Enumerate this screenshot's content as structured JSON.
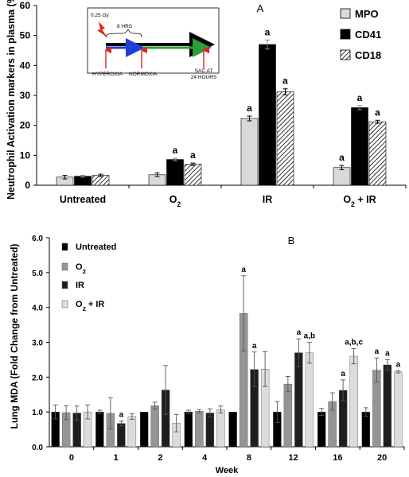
{
  "chart_data": [
    {
      "type": "bar",
      "panel_label": "A",
      "ylabel": "Neutrophil Activation markers in plasma (%)",
      "xlabel": "",
      "ylim": [
        0,
        60
      ],
      "yticks": [
        "0",
        "10",
        "20",
        "30",
        "40",
        "50",
        "60"
      ],
      "grid": false,
      "legend_position": "top-right",
      "categories": [
        "Untreated",
        "O2",
        "IR",
        "O2 + IR"
      ],
      "category_labels": [
        {
          "main": "Untreated",
          "sub": "",
          "rest": ""
        },
        {
          "main": "O",
          "sub": "2",
          "rest": ""
        },
        {
          "main": "IR",
          "sub": "",
          "rest": ""
        },
        {
          "main": "O",
          "sub": "2",
          "rest": " + IR"
        }
      ],
      "series": [
        {
          "name": "MPO",
          "color": "#d9d9d9",
          "pattern": "solid-light",
          "values": [
            2.7,
            3.5,
            22.3,
            5.9
          ],
          "errors": [
            0.6,
            0.6,
            0.8,
            0.7
          ],
          "annotations": [
            "",
            "",
            "a",
            "a"
          ]
        },
        {
          "name": "CD41",
          "color": "#000000",
          "pattern": "solid-black",
          "values": [
            3.0,
            8.6,
            47.0,
            25.9
          ],
          "errors": [
            0.3,
            0.4,
            1.5,
            0.7
          ],
          "annotations": [
            "",
            "a",
            "a",
            "a"
          ]
        },
        {
          "name": "CD18",
          "color": "#ffffff",
          "pattern": "diagonal-hatch",
          "values": [
            3.3,
            7.0,
            31.2,
            21.2
          ],
          "errors": [
            0.4,
            0.4,
            1.0,
            0.5
          ],
          "annotations": [
            "",
            "a",
            "a",
            "a"
          ]
        }
      ],
      "inset": {
        "dose": "0.25 Gy",
        "duration": "8 HRS",
        "label_hyperoxia": "HYPEROXIA",
        "label_normoxia": "NORMOXIA",
        "label_sac_line1": "SAC AT",
        "label_sac_line2": "24 HOURS",
        "colors": {
          "hyperoxia": "#1f3fd6",
          "normoxia": "#2e9e3a",
          "timeline": "#000000",
          "marker": "#e02020"
        }
      }
    },
    {
      "type": "bar",
      "panel_label": "B",
      "ylabel": "Lung MDA (Fold Change from Untreated)",
      "xlabel": "Week",
      "ylim": [
        0,
        6
      ],
      "yticks": [
        "0.0",
        "1.0",
        "2.0",
        "3.0",
        "4.0",
        "5.0",
        "6.0"
      ],
      "grid": false,
      "legend_position": "top-left",
      "categories": [
        "0",
        "1",
        "2",
        "4",
        "8",
        "12",
        "16",
        "20"
      ],
      "series": [
        {
          "name": "Untreated",
          "legend": {
            "main": "Untreated",
            "sub": "",
            "rest": ""
          },
          "color": "#000000",
          "values": [
            1.0,
            1.0,
            1.0,
            1.0,
            1.0,
            1.0,
            1.0,
            1.0
          ],
          "errors": [
            0.2,
            0.05,
            0.0,
            0.05,
            0.0,
            0.3,
            0.1,
            0.12
          ],
          "annotations": [
            "",
            "",
            "",
            "",
            "",
            "",
            "",
            ""
          ]
        },
        {
          "name": "O2",
          "legend": {
            "main": "O",
            "sub": "2",
            "rest": ""
          },
          "color": "#959595",
          "values": [
            0.98,
            0.96,
            1.18,
            1.02,
            3.83,
            1.8,
            1.3,
            2.2
          ],
          "errors": [
            0.2,
            0.45,
            0.1,
            0.05,
            1.08,
            0.22,
            0.25,
            0.35
          ],
          "annotations": [
            "",
            "",
            "",
            "",
            "a",
            "",
            "",
            "a"
          ]
        },
        {
          "name": "IR",
          "legend": {
            "main": "IR",
            "sub": "",
            "rest": ""
          },
          "color": "#1e1e1e",
          "values": [
            0.97,
            0.67,
            1.63,
            0.97,
            2.22,
            2.7,
            1.62,
            2.35
          ],
          "errors": [
            0.2,
            0.07,
            0.7,
            0.12,
            0.5,
            0.4,
            0.3,
            0.15
          ],
          "annotations": [
            "",
            "a",
            "",
            "",
            "a",
            "a",
            "a",
            "a"
          ]
        },
        {
          "name": "O2 + IR",
          "legend": {
            "main": "O",
            "sub": "2",
            "rest": " + IR"
          },
          "color": "#dcdcdc",
          "values": [
            1.0,
            0.87,
            0.68,
            1.07,
            2.23,
            2.7,
            2.6,
            2.15
          ],
          "errors": [
            0.2,
            0.08,
            0.25,
            0.1,
            0.5,
            0.3,
            0.22,
            0.03
          ],
          "annotations": [
            "",
            "",
            "",
            "",
            "",
            "a,b",
            "a,b,c",
            "a"
          ]
        }
      ]
    }
  ]
}
